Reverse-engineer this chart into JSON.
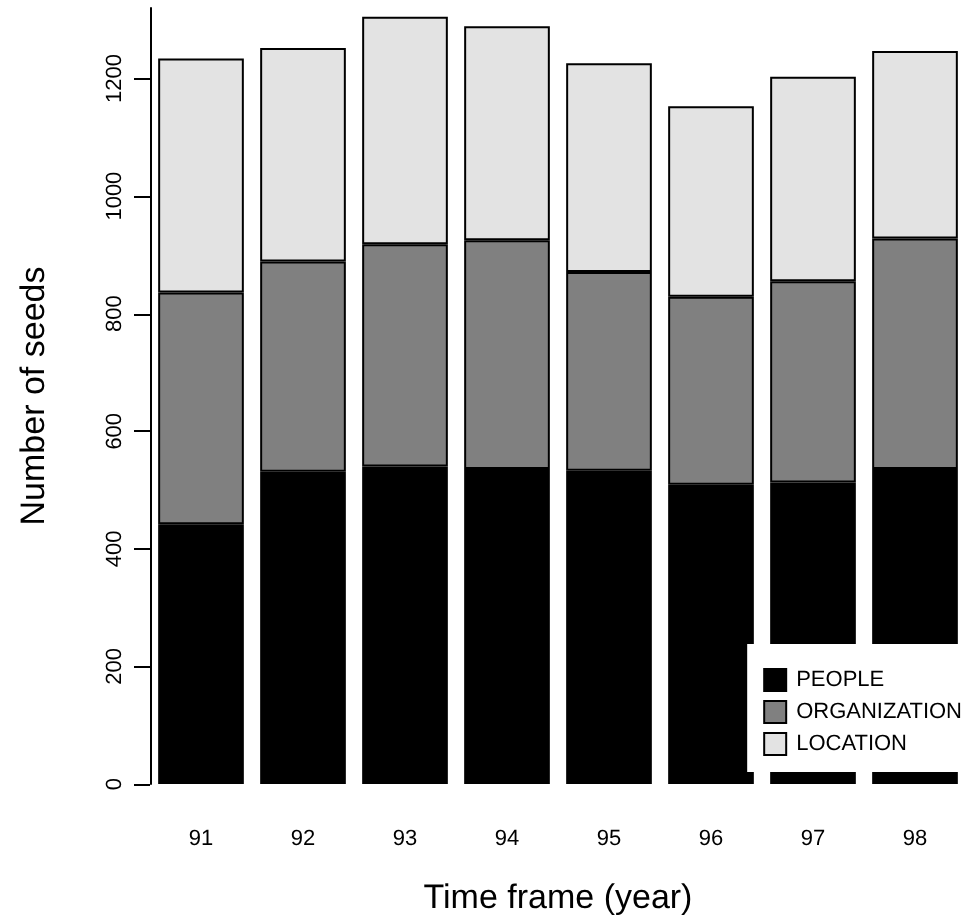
{
  "chart_data": {
    "type": "bar",
    "stacked": true,
    "xlabel": "Time frame (year)",
    "ylabel": "Number of seeds",
    "categories": [
      "91",
      "92",
      "93",
      "94",
      "95",
      "96",
      "97",
      "98"
    ],
    "series": [
      {
        "name": "PEOPLE",
        "color": "#000000",
        "values": [
          442,
          531,
          540,
          536,
          533,
          509,
          513,
          536
        ]
      },
      {
        "name": "ORGANIZATION",
        "color": "#808080",
        "values": [
          394,
          358,
          378,
          389,
          338,
          320,
          342,
          392
        ]
      },
      {
        "name": "LOCATION",
        "color": "#e3e3e3",
        "values": [
          398,
          363,
          387,
          364,
          355,
          324,
          348,
          319
        ]
      }
    ],
    "ylim": [
      0,
      1320
    ],
    "yticks": [
      0,
      200,
      400,
      600,
      800,
      1000,
      1200
    ],
    "grid": false,
    "legend": "bottom right"
  }
}
